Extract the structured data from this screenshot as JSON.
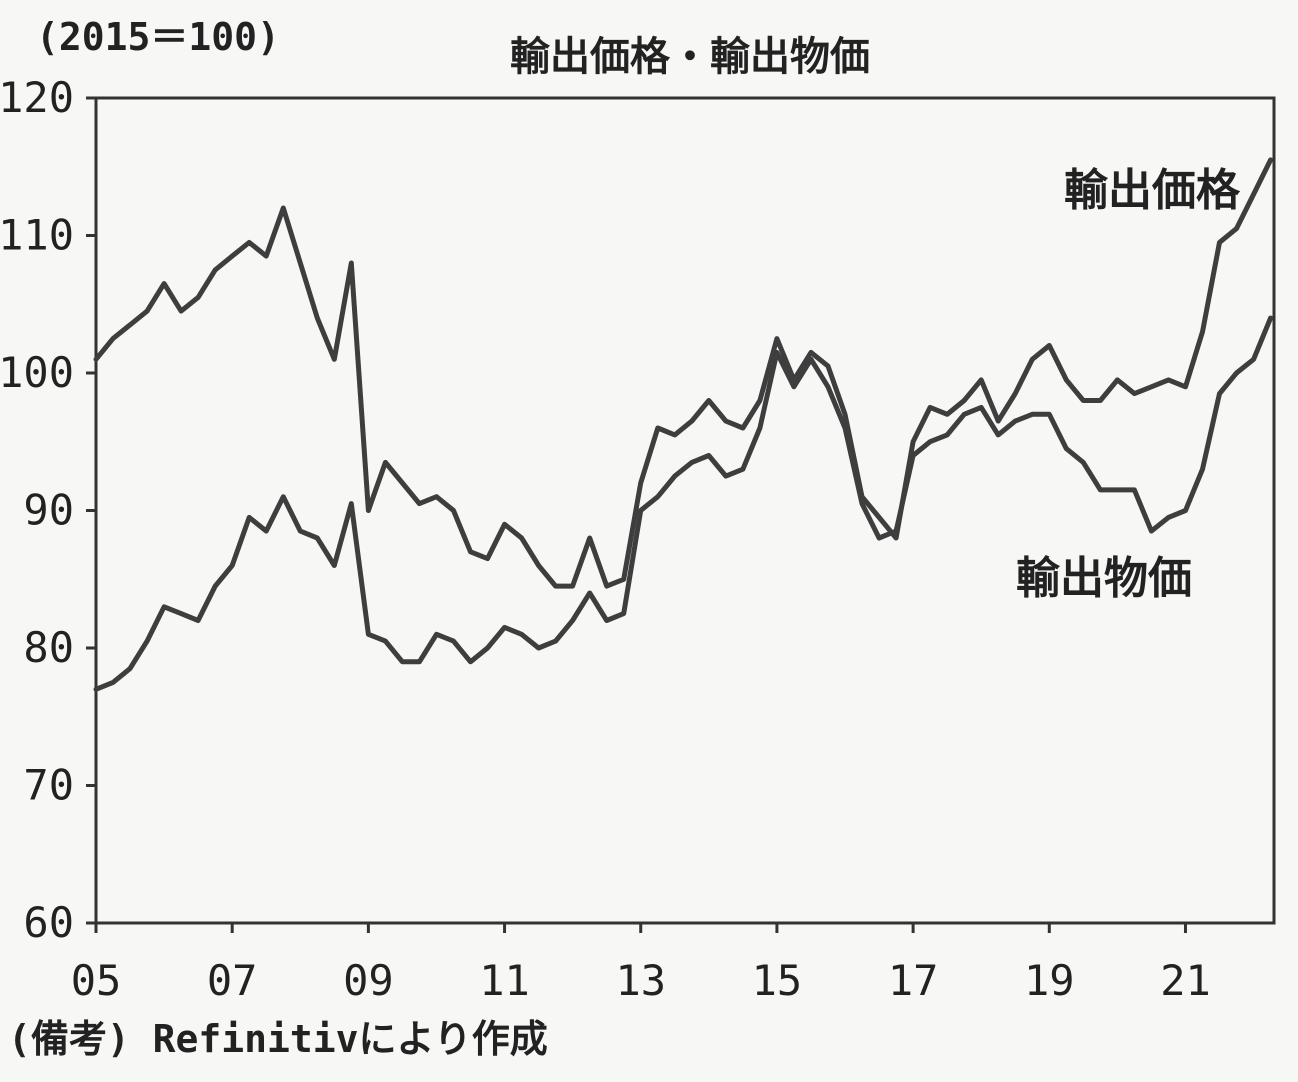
{
  "unit_label": "(2015＝100)",
  "source_note": "(備考) Refinitivにより作成",
  "chart_data": {
    "type": "line",
    "title": "輸出価格・輸出物価",
    "xlabel": "",
    "ylabel": "",
    "x_tick_labels": [
      "05",
      "07",
      "09",
      "11",
      "13",
      "15",
      "17",
      "19",
      "21"
    ],
    "x_ticks": [
      2005,
      2007,
      2009,
      2011,
      2013,
      2015,
      2017,
      2019,
      2021
    ],
    "xlim": [
      2005,
      2022.3
    ],
    "ylim": [
      60,
      120
    ],
    "y_ticks": [
      60,
      70,
      80,
      90,
      100,
      110,
      120
    ],
    "y_tick_labels": [
      "60",
      "70",
      "80",
      "90",
      "100",
      "110",
      "120"
    ],
    "grid": false,
    "legend": "inline labels",
    "x": [
      2005.0,
      2005.25,
      2005.5,
      2005.75,
      2006.0,
      2006.25,
      2006.5,
      2006.75,
      2007.0,
      2007.25,
      2007.5,
      2007.75,
      2008.0,
      2008.25,
      2008.5,
      2008.75,
      2009.0,
      2009.25,
      2009.5,
      2009.75,
      2010.0,
      2010.25,
      2010.5,
      2010.75,
      2011.0,
      2011.25,
      2011.5,
      2011.75,
      2012.0,
      2012.25,
      2012.5,
      2012.75,
      2013.0,
      2013.25,
      2013.5,
      2013.75,
      2014.0,
      2014.25,
      2014.5,
      2014.75,
      2015.0,
      2015.25,
      2015.5,
      2015.75,
      2016.0,
      2016.25,
      2016.5,
      2016.75,
      2017.0,
      2017.25,
      2017.5,
      2017.75,
      2018.0,
      2018.25,
      2018.5,
      2018.75,
      2019.0,
      2019.25,
      2019.5,
      2019.75,
      2020.0,
      2020.25,
      2020.5,
      2020.75,
      2021.0,
      2021.25,
      2021.5,
      2021.75,
      2022.0,
      2022.25
    ],
    "series": [
      {
        "name": "輸出価格",
        "values": [
          101,
          102.5,
          103.5,
          104.5,
          106.5,
          104.5,
          105.5,
          107.5,
          108.5,
          109.5,
          108.5,
          112,
          108,
          104,
          101,
          108,
          90,
          93.5,
          92,
          90.5,
          91,
          90,
          87,
          86.5,
          89,
          88,
          86,
          84.5,
          84.5,
          88,
          84.5,
          85,
          92,
          96,
          95.5,
          96.5,
          98,
          96.5,
          96,
          98,
          102.5,
          99.5,
          101.5,
          100.5,
          97,
          91,
          89.5,
          88,
          95,
          97.5,
          97,
          98,
          99.5,
          96.5,
          98.5,
          101,
          102,
          99.5,
          98,
          98,
          99.5,
          98.5,
          99,
          99.5,
          99,
          103,
          109.5,
          110.5,
          113,
          115.5
        ],
        "color": "#3e3e3e"
      },
      {
        "name": "輸出物価",
        "values": [
          77,
          77.5,
          78.5,
          80.5,
          83,
          82.5,
          82,
          84.5,
          86,
          89.5,
          88.5,
          91,
          88.5,
          88,
          86,
          90.5,
          81,
          80.5,
          79,
          79,
          81,
          80.5,
          79,
          80,
          81.5,
          81,
          80,
          80.5,
          82,
          84,
          82,
          82.5,
          90,
          91,
          92.5,
          93.5,
          94,
          92.5,
          93,
          96,
          101.5,
          99,
          101,
          99,
          96,
          90.5,
          88,
          88.5,
          94,
          95,
          95.5,
          97,
          97.5,
          95.5,
          96.5,
          97,
          97,
          94.5,
          93.5,
          91.5,
          91.5,
          91.5,
          88.5,
          89.5,
          90,
          93,
          98.5,
          100,
          101,
          104
        ]
      }
    ]
  }
}
